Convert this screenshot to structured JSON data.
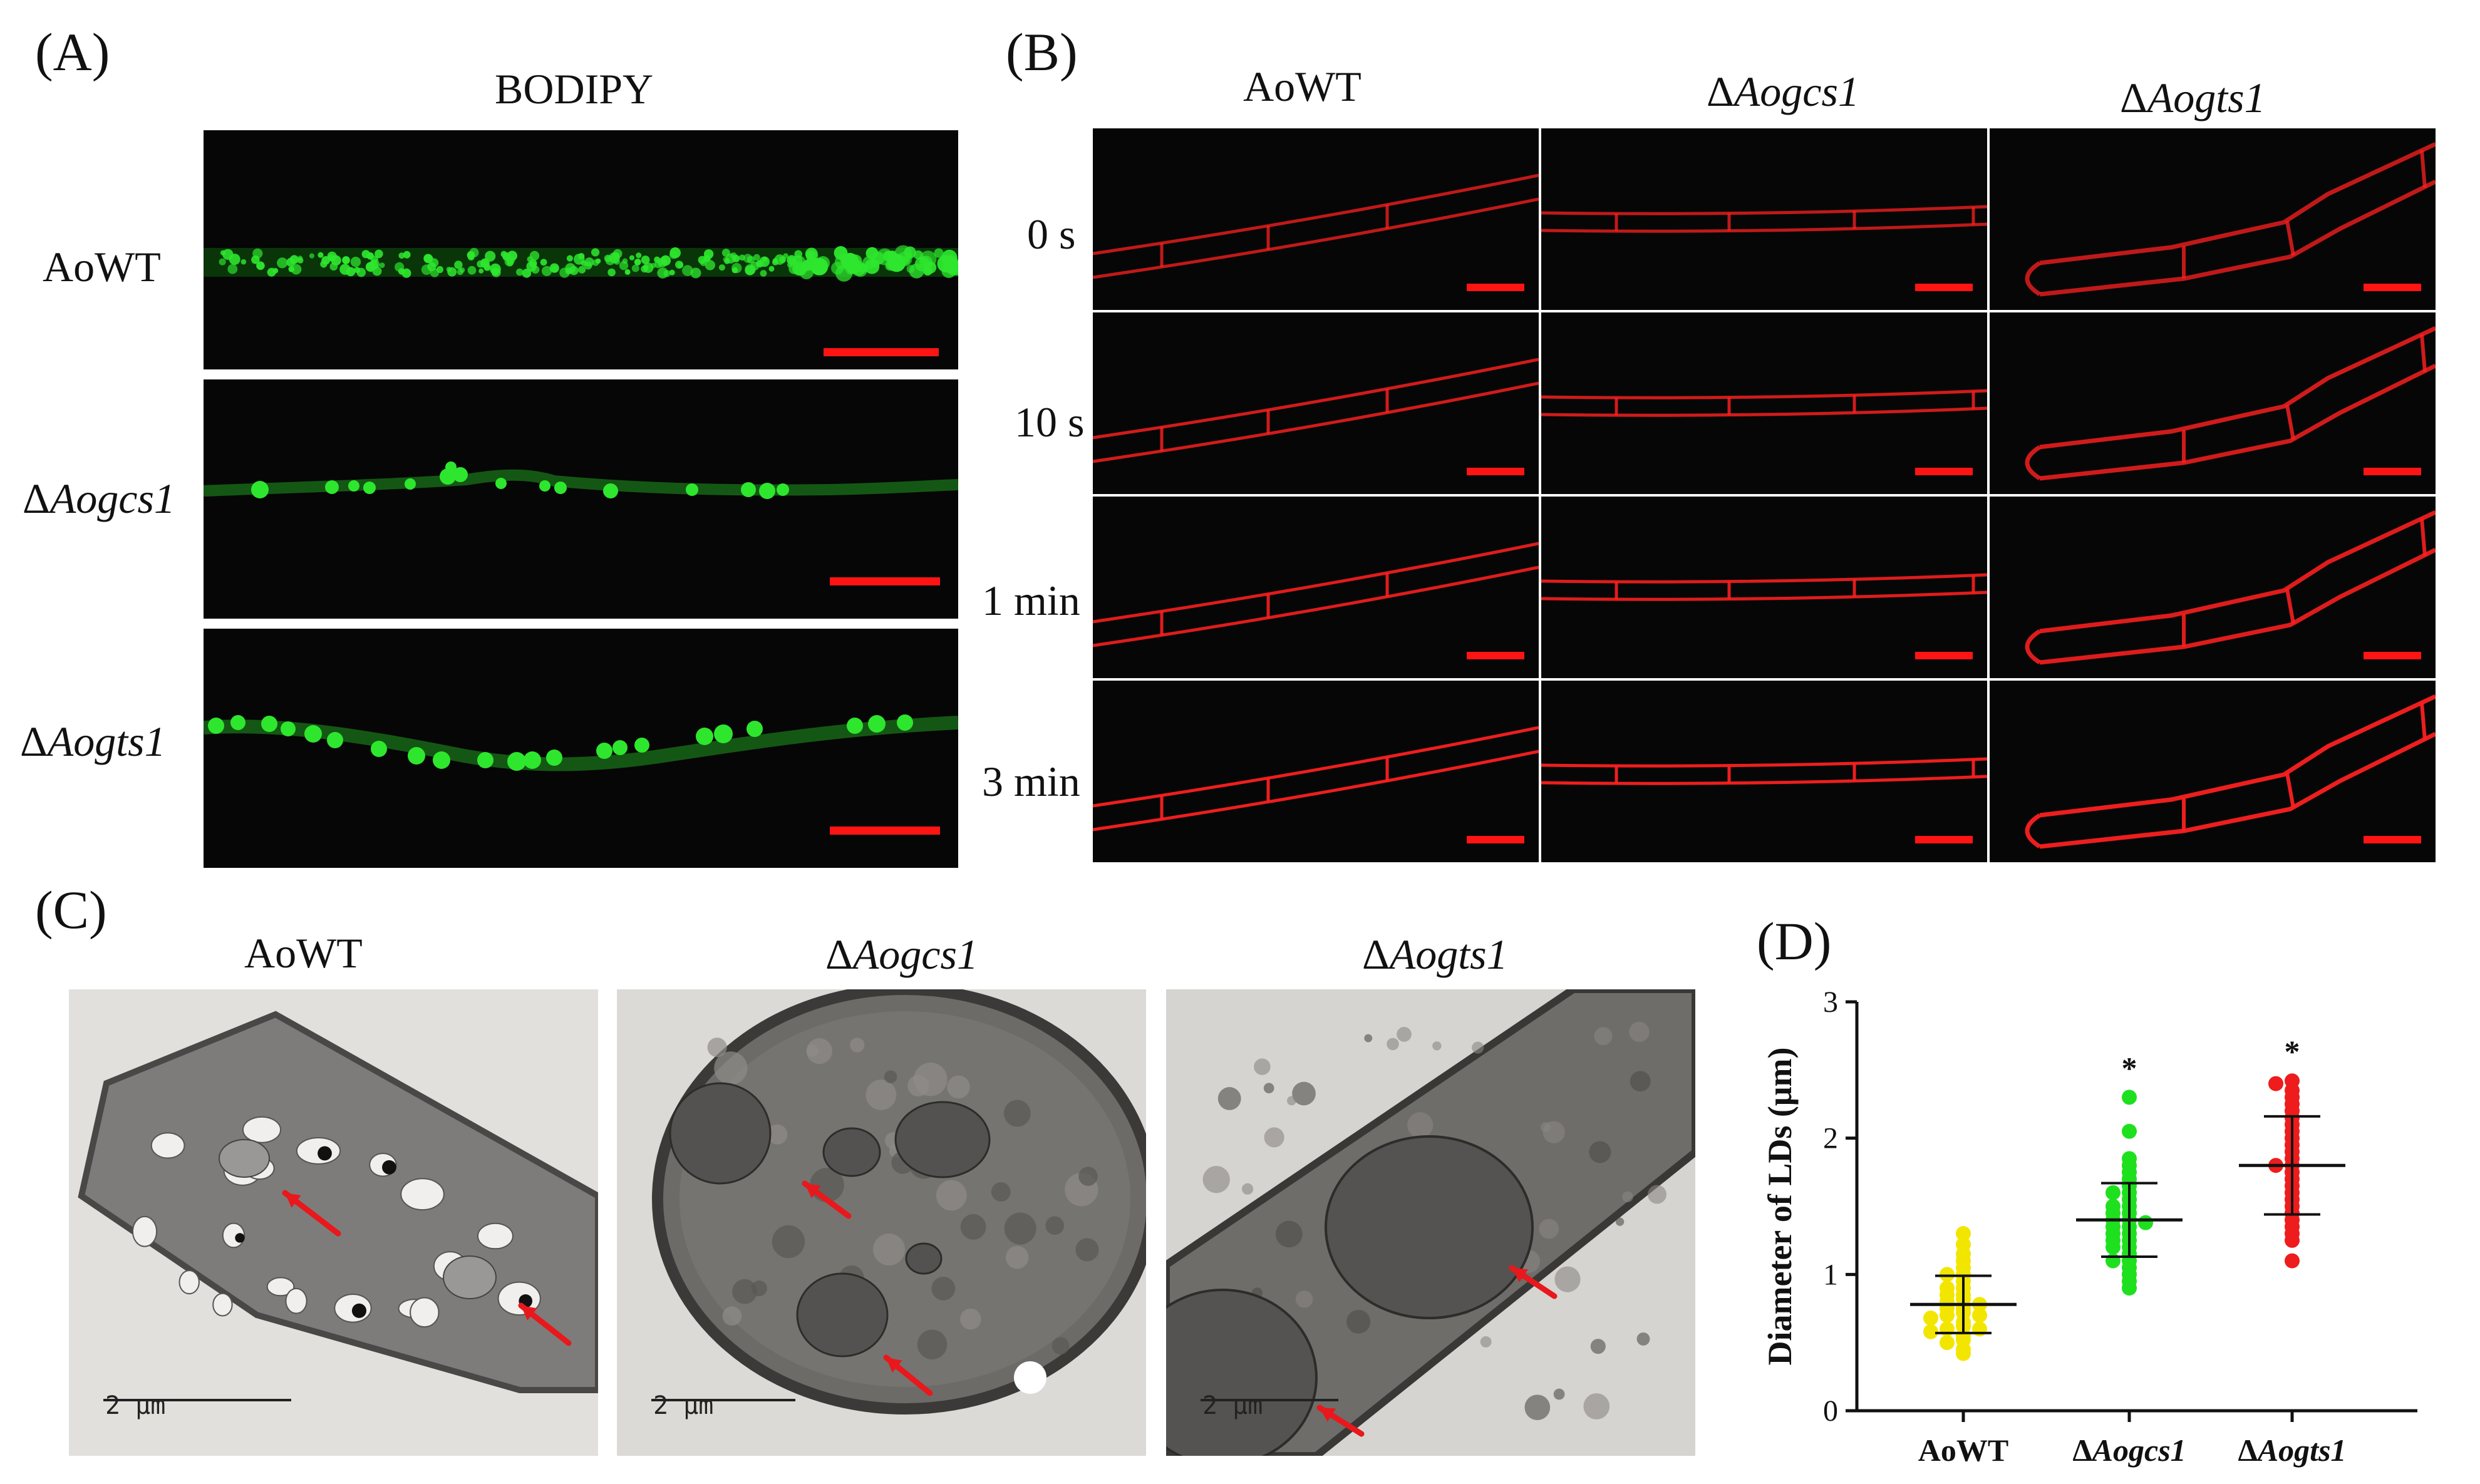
{
  "panel_labels": {
    "a": "(A)",
    "b": "(B)",
    "c": "(C)",
    "d": "(D)"
  },
  "panel_a": {
    "title": "BODIPY",
    "rows": [
      {
        "prefix": "",
        "name": "AoWT"
      },
      {
        "prefix": "Δ",
        "name": "Aogcs1"
      },
      {
        "prefix": "Δ",
        "name": "Aogts1"
      }
    ]
  },
  "panel_b": {
    "columns": [
      {
        "prefix": "",
        "name": "AoWT"
      },
      {
        "prefix": "Δ",
        "name": "Aogcs1"
      },
      {
        "prefix": "Δ",
        "name": "Aogts1"
      }
    ],
    "times": [
      "0 s",
      "10 s",
      "1 min",
      "3 min"
    ]
  },
  "panel_c": {
    "columns": [
      {
        "prefix": "",
        "name": "AoWT"
      },
      {
        "prefix": "Δ",
        "name": "Aogcs1"
      },
      {
        "prefix": "Δ",
        "name": "Aogts1"
      }
    ],
    "scale_label": "2 μm"
  },
  "colors": {
    "bodipy_green": "#2ee62e",
    "membrane_red": "#ff2020",
    "scale_bar": "#ff1414",
    "arrow": "#e8181c",
    "wt_points": "#f2e600",
    "gcs1_points": "#1fe01f",
    "gts1_points": "#ee1c1c"
  },
  "chart_data": {
    "type": "scatter",
    "ylabel": "Diameter of LDs (μm)",
    "xlabel": "",
    "ylim": [
      0,
      3
    ],
    "yticks": [
      "0",
      "1",
      "2",
      "3"
    ],
    "categories": [
      {
        "prefix": "",
        "name": "AoWT"
      },
      {
        "prefix": "Δ",
        "name": "Aogcs1"
      },
      {
        "prefix": "Δ",
        "name": "Aogts1"
      }
    ],
    "series": [
      {
        "mean": 0.78,
        "sd": 0.21,
        "significance": "",
        "values": [
          1.3,
          1.22,
          1.15,
          1.1,
          1.05,
          1.0,
          1.0,
          0.95,
          0.9,
          0.9,
          0.85,
          0.85,
          0.82,
          0.8,
          0.78,
          0.75,
          0.75,
          0.72,
          0.7,
          0.7,
          0.68,
          0.65,
          0.62,
          0.6,
          0.6,
          0.58,
          0.55,
          0.52,
          0.5,
          0.45,
          0.42
        ]
      },
      {
        "mean": 1.4,
        "sd": 0.27,
        "significance": "*",
        "values": [
          2.3,
          2.05,
          1.85,
          1.8,
          1.75,
          1.7,
          1.65,
          1.6,
          1.6,
          1.55,
          1.5,
          1.5,
          1.45,
          1.45,
          1.4,
          1.4,
          1.38,
          1.35,
          1.35,
          1.3,
          1.3,
          1.25,
          1.25,
          1.2,
          1.2,
          1.15,
          1.1,
          1.1,
          1.05,
          1.0,
          0.95,
          0.9
        ]
      },
      {
        "mean": 1.8,
        "sd": 0.36,
        "significance": "*",
        "values": [
          2.42,
          2.4,
          2.35,
          2.3,
          2.25,
          2.2,
          2.15,
          2.1,
          2.05,
          2.0,
          1.95,
          1.9,
          1.85,
          1.8,
          1.8,
          1.75,
          1.7,
          1.65,
          1.6,
          1.55,
          1.5,
          1.45,
          1.4,
          1.35,
          1.3,
          1.25,
          1.1
        ]
      }
    ]
  }
}
